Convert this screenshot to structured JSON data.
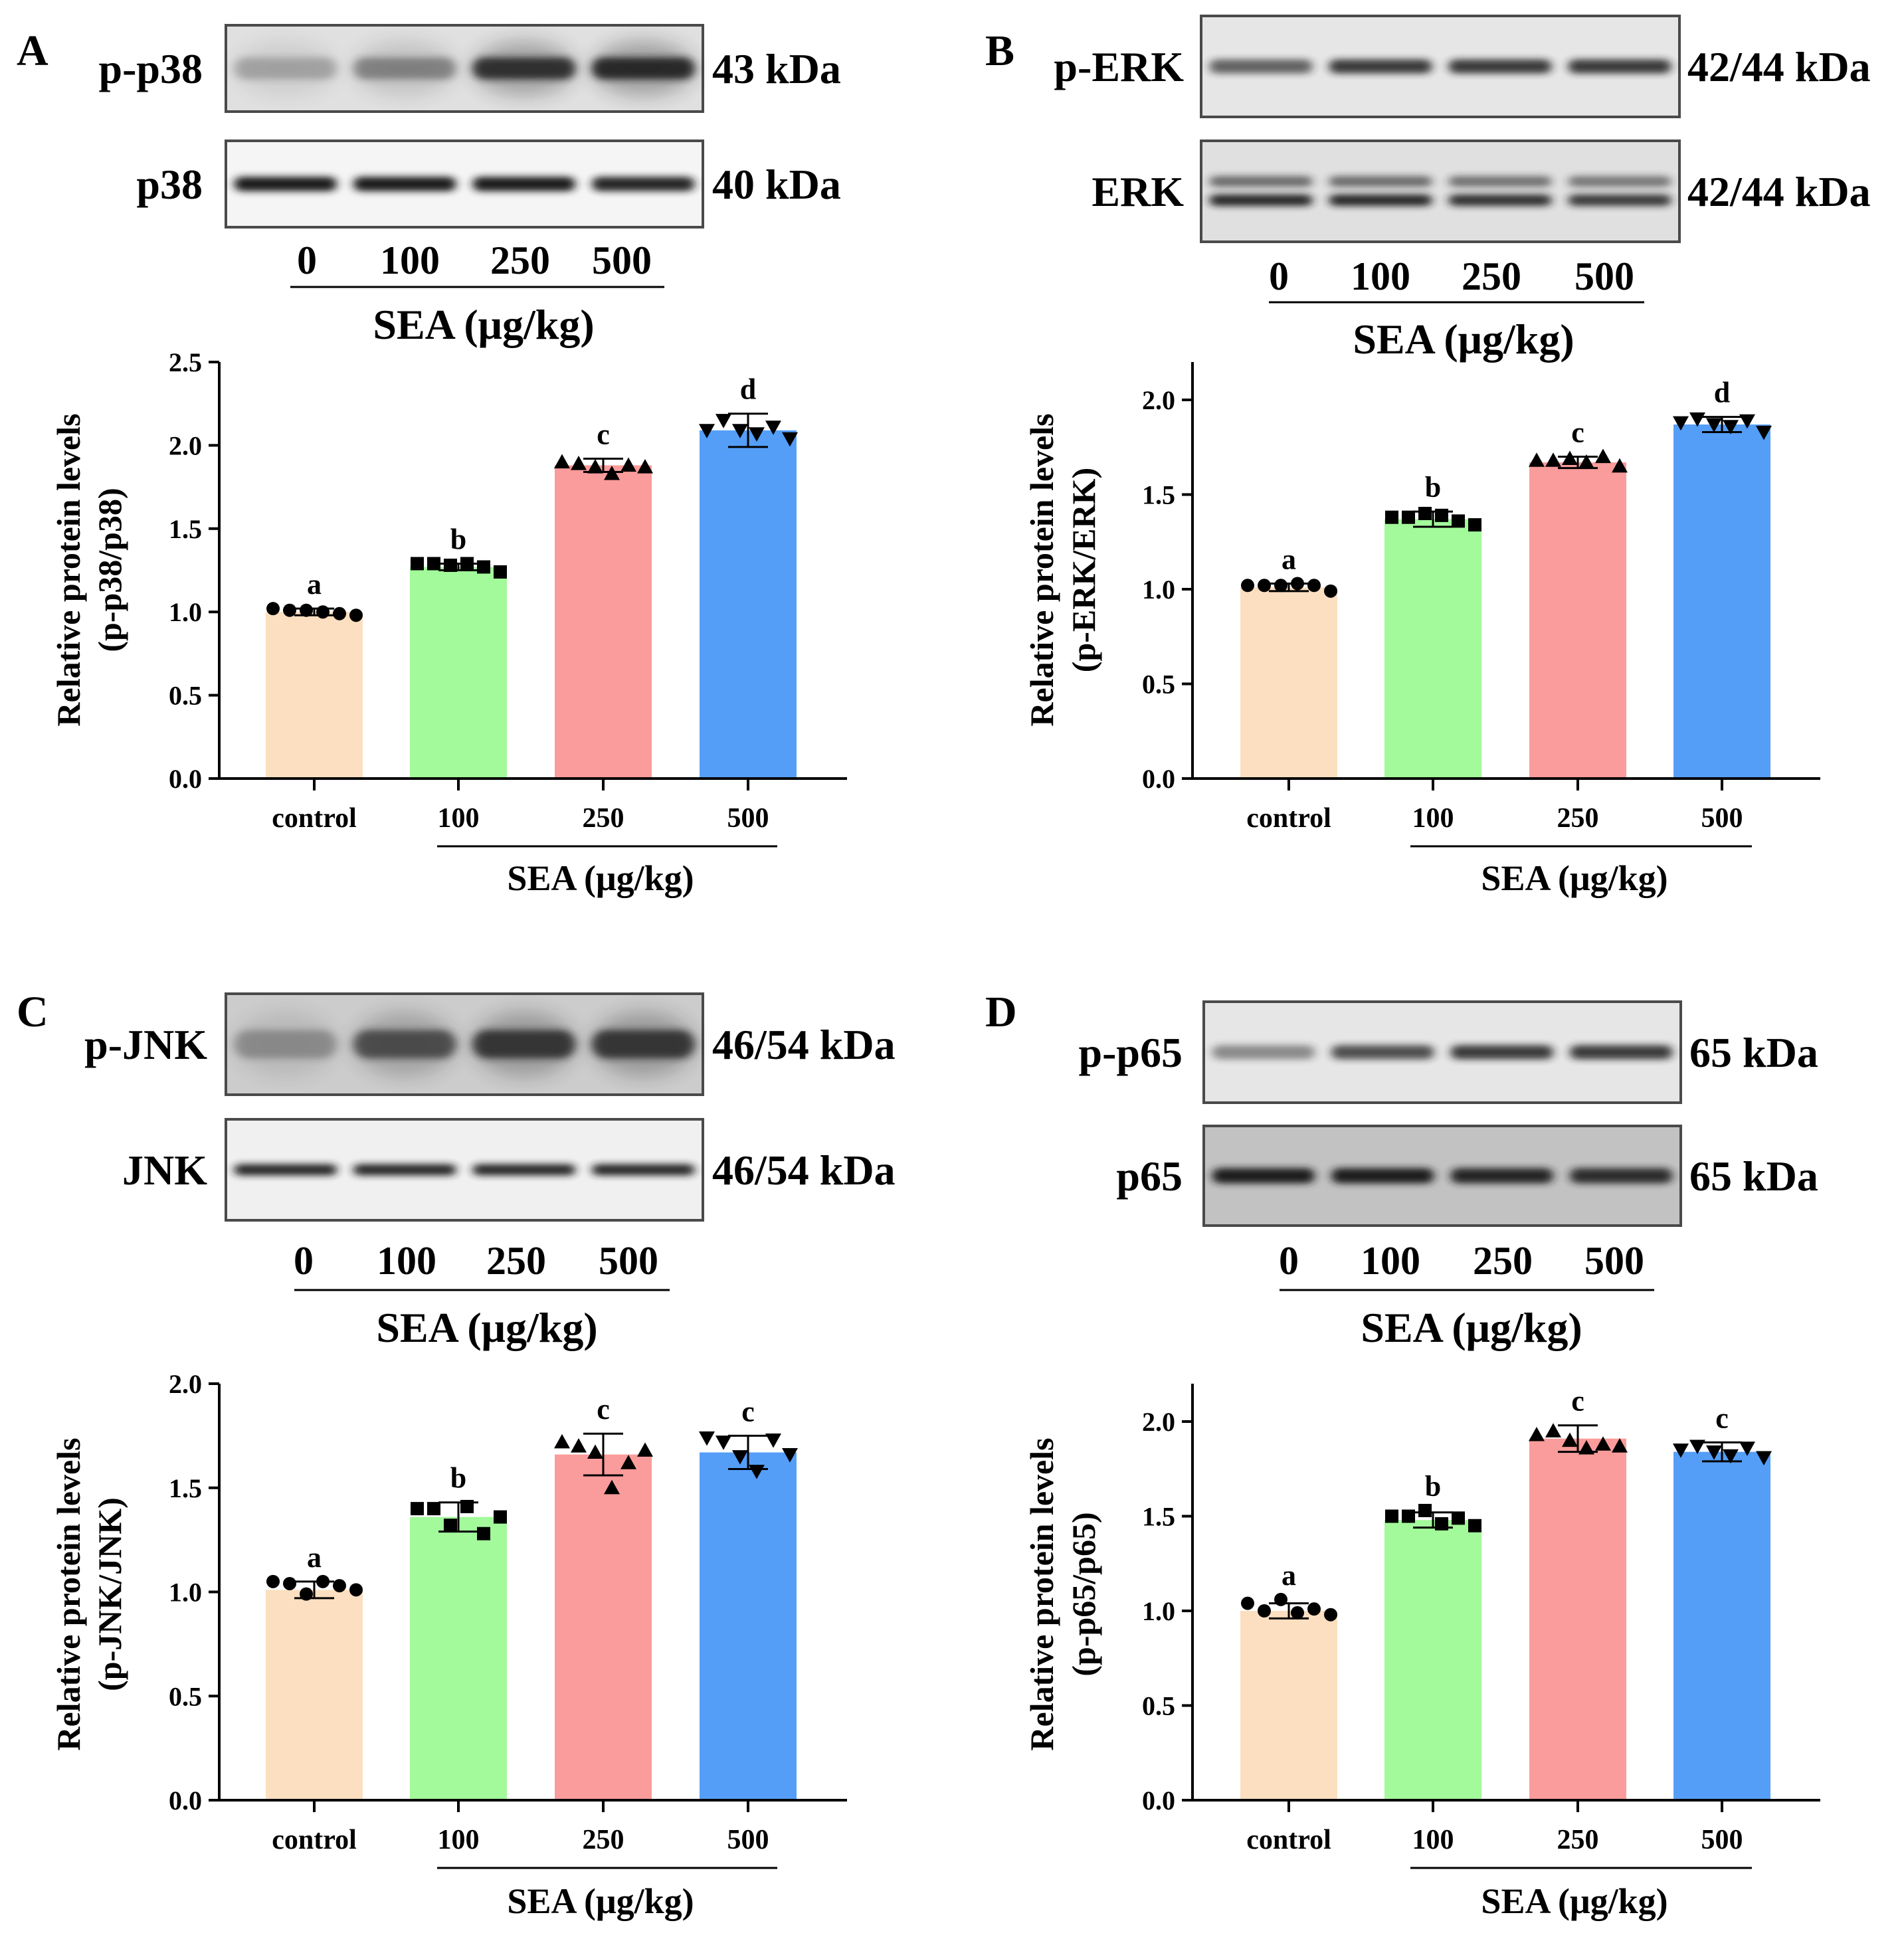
{
  "figure": {
    "colors": {
      "bars": [
        "#FCDFC0",
        "#A3FA9B",
        "#FA9C9B",
        "#549EF7"
      ],
      "blot_frame": "#4a4a4a",
      "blot_background": "#e8e8e8",
      "band": "#1a1a1a",
      "axis": "#000000"
    }
  },
  "panels": [
    {
      "letter": "A",
      "blots": [
        {
          "protein": "p-p38",
          "size": "43 kDa",
          "intensities": [
            0.25,
            0.4,
            0.85,
            0.9
          ],
          "thickness": 0.9,
          "background": 0.88
        },
        {
          "protein": "p38",
          "size": "40 kDa",
          "intensities": [
            1.0,
            1.0,
            1.0,
            0.95
          ],
          "thickness": 0.6,
          "background": 0.96
        }
      ],
      "lanes": [
        "0",
        "100",
        "250",
        "500"
      ],
      "lane_title": "SEA (μg/kg)"
    },
    {
      "letter": "B",
      "blots": [
        {
          "protein": "p-ERK",
          "size": "42/44 kDa",
          "intensities": [
            0.65,
            0.85,
            0.85,
            0.85
          ],
          "thickness": 0.5,
          "background": 0.9,
          "double": false
        },
        {
          "protein": "ERK",
          "size": "42/44 kDa",
          "intensities": [
            1.0,
            1.0,
            0.95,
            0.9
          ],
          "thickness": 0.45,
          "background": 0.88,
          "double": true
        }
      ],
      "lanes": [
        "0",
        "100",
        "250",
        "500"
      ],
      "lane_title": "SEA (μg/kg)"
    },
    {
      "letter": "C",
      "blots": [
        {
          "protein": "p-JNK",
          "size": "46/54 kDa",
          "intensities": [
            0.3,
            0.65,
            0.8,
            0.8
          ],
          "thickness": 1.0,
          "background": 0.8
        },
        {
          "protein": "JNK",
          "size": "46/54 kDa",
          "intensities": [
            0.95,
            0.95,
            0.95,
            0.95
          ],
          "thickness": 0.4,
          "background": 0.94
        }
      ],
      "lanes": [
        "0",
        "100",
        "250",
        "500"
      ],
      "lane_title": "SEA (μg/kg)"
    },
    {
      "letter": "D",
      "blots": [
        {
          "protein": "p-p65",
          "size": "65 kDa",
          "intensities": [
            0.45,
            0.75,
            0.85,
            0.85
          ],
          "thickness": 0.5,
          "background": 0.9
        },
        {
          "protein": "p65",
          "size": "65 kDa",
          "intensities": [
            1.0,
            1.0,
            0.95,
            0.9
          ],
          "thickness": 0.55,
          "background": 0.76
        }
      ],
      "lanes": [
        "0",
        "100",
        "250",
        "500"
      ],
      "lane_title": "SEA (μg/kg)"
    }
  ],
  "chart_data": [
    {
      "type": "bar",
      "panel": "A",
      "categories": [
        "control",
        "100",
        "250",
        "500"
      ],
      "group_label": "SEA (μg/kg)",
      "ylabel_line1": "Relative protein levels",
      "ylabel_line2": "(p-p38/p38)",
      "ylim": [
        0,
        2.5
      ],
      "yticks": [
        "0.0",
        "0.5",
        "1.0",
        "1.5",
        "2.0",
        "2.5"
      ],
      "values": [
        1.0,
        1.27,
        1.88,
        2.09
      ],
      "errors": [
        0.02,
        0.02,
        0.04,
        0.1
      ],
      "letters": [
        "a",
        "b",
        "c",
        "d"
      ],
      "marker": [
        "circle",
        "square",
        "triangle",
        "triangle-down"
      ],
      "points": [
        [
          1.02,
          1.01,
          1.01,
          1.0,
          0.99,
          0.98
        ],
        [
          1.29,
          1.29,
          1.28,
          1.29,
          1.27,
          1.24
        ],
        [
          1.9,
          1.89,
          1.87,
          1.83,
          1.88,
          1.87
        ],
        [
          2.09,
          2.15,
          2.09,
          2.07,
          2.11,
          2.04
        ]
      ]
    },
    {
      "type": "bar",
      "panel": "B",
      "categories": [
        "control",
        "100",
        "250",
        "500"
      ],
      "group_label": "SEA (μg/kg)",
      "ylabel_line1": "Relative protein levels",
      "ylabel_line2": "(p-ERK/ERK)",
      "ylim": [
        0,
        2.2
      ],
      "yticks": [
        "0.0",
        "0.5",
        "1.0",
        "1.5",
        "2.0"
      ],
      "values": [
        1.01,
        1.37,
        1.67,
        1.87
      ],
      "errors": [
        0.02,
        0.04,
        0.03,
        0.04
      ],
      "letters": [
        "a",
        "b",
        "c",
        "d"
      ],
      "marker": [
        "circle",
        "square",
        "triangle",
        "triangle-down"
      ],
      "points": [
        [
          1.02,
          1.02,
          1.02,
          1.03,
          1.02,
          0.99
        ],
        [
          1.38,
          1.38,
          1.4,
          1.39,
          1.36,
          1.34
        ],
        [
          1.68,
          1.68,
          1.69,
          1.67,
          1.7,
          1.65
        ],
        [
          1.88,
          1.9,
          1.87,
          1.86,
          1.89,
          1.83
        ]
      ]
    },
    {
      "type": "bar",
      "panel": "C",
      "categories": [
        "control",
        "100",
        "250",
        "500"
      ],
      "group_label": "SEA (μg/kg)",
      "ylabel_line1": "Relative protein levels",
      "ylabel_line2": "(p-JNK/JNK)",
      "ylim": [
        0,
        2.0
      ],
      "yticks": [
        "0.0",
        "0.5",
        "1.0",
        "1.5",
        "2.0"
      ],
      "values": [
        1.01,
        1.36,
        1.66,
        1.67
      ],
      "errors": [
        0.04,
        0.07,
        0.1,
        0.08
      ],
      "letters": [
        "a",
        "b",
        "c",
        "c"
      ],
      "marker": [
        "circle",
        "square",
        "triangle",
        "triangle-down"
      ],
      "points": [
        [
          1.05,
          1.04,
          0.99,
          1.05,
          1.03,
          1.01
        ],
        [
          1.4,
          1.4,
          1.32,
          1.41,
          1.28,
          1.36
        ],
        [
          1.72,
          1.7,
          1.67,
          1.5,
          1.62,
          1.68
        ],
        [
          1.74,
          1.72,
          1.65,
          1.58,
          1.73,
          1.66
        ]
      ]
    },
    {
      "type": "bar",
      "panel": "D",
      "categories": [
        "control",
        "100",
        "250",
        "500"
      ],
      "group_label": "SEA (μg/kg)",
      "ylabel_line1": "Relative protein levels",
      "ylabel_line2": "(p-p65/p65)",
      "ylim": [
        0,
        2.2
      ],
      "yticks": [
        "0.0",
        "0.5",
        "1.0",
        "1.5",
        "2.0"
      ],
      "values": [
        1.0,
        1.48,
        1.91,
        1.84
      ],
      "errors": [
        0.04,
        0.04,
        0.07,
        0.05
      ],
      "letters": [
        "a",
        "b",
        "c",
        "c"
      ],
      "marker": [
        "circle",
        "square",
        "triangle",
        "triangle-down"
      ],
      "points": [
        [
          1.04,
          1.0,
          1.06,
          0.99,
          1.01,
          0.98
        ],
        [
          1.5,
          1.5,
          1.53,
          1.46,
          1.49,
          1.45
        ],
        [
          1.93,
          1.95,
          1.9,
          1.86,
          1.88,
          1.87
        ],
        [
          1.85,
          1.87,
          1.84,
          1.82,
          1.86,
          1.81
        ]
      ]
    }
  ]
}
